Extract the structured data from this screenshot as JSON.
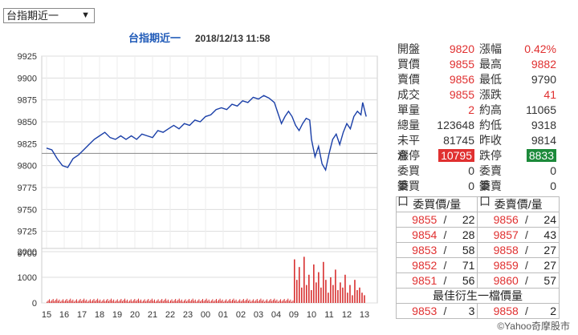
{
  "selector": {
    "value": "台指期近一",
    "arrow": "▼"
  },
  "chart_title": {
    "name": "台指期近一",
    "datetime": "2018/12/13 11:58"
  },
  "chart_data": [
    {
      "type": "line",
      "title": "台指期近一 2018/12/13 11:58",
      "x_tick_labels": [
        "15",
        "16",
        "17",
        "18",
        "19",
        "20",
        "21",
        "22",
        "23",
        "00",
        "01",
        "02",
        "03",
        "04",
        "09",
        "10",
        "11",
        "12",
        "13"
      ],
      "ylim": [
        9700,
        9925
      ],
      "y_ticks": [
        9925,
        9900,
        9875,
        9850,
        9825,
        9800,
        9775,
        9750,
        9725,
        9700
      ],
      "reference_line": 9814,
      "grid": true,
      "series": [
        {
          "points": [
            [
              0.0,
              9820
            ],
            [
              0.3,
              9818
            ],
            [
              0.6,
              9808
            ],
            [
              0.9,
              9800
            ],
            [
              1.2,
              9798
            ],
            [
              1.5,
              9808
            ],
            [
              1.8,
              9812
            ],
            [
              2.1,
              9818
            ],
            [
              2.4,
              9824
            ],
            [
              2.7,
              9830
            ],
            [
              3.0,
              9834
            ],
            [
              3.3,
              9838
            ],
            [
              3.6,
              9832
            ],
            [
              3.9,
              9830
            ],
            [
              4.2,
              9834
            ],
            [
              4.5,
              9830
            ],
            [
              4.8,
              9834
            ],
            [
              5.1,
              9830
            ],
            [
              5.4,
              9836
            ],
            [
              5.7,
              9834
            ],
            [
              6.0,
              9832
            ],
            [
              6.3,
              9840
            ],
            [
              6.6,
              9838
            ],
            [
              6.9,
              9842
            ],
            [
              7.2,
              9846
            ],
            [
              7.5,
              9842
            ],
            [
              7.8,
              9848
            ],
            [
              8.1,
              9846
            ],
            [
              8.4,
              9852
            ],
            [
              8.7,
              9850
            ],
            [
              9.0,
              9856
            ],
            [
              9.3,
              9858
            ],
            [
              9.6,
              9864
            ],
            [
              9.9,
              9866
            ],
            [
              10.2,
              9864
            ],
            [
              10.5,
              9870
            ],
            [
              10.8,
              9868
            ],
            [
              11.1,
              9874
            ],
            [
              11.4,
              9872
            ],
            [
              11.7,
              9878
            ],
            [
              12.0,
              9876
            ],
            [
              12.3,
              9880
            ],
            [
              12.6,
              9877
            ],
            [
              12.9,
              9872
            ],
            [
              13.1,
              9860
            ],
            [
              13.3,
              9848
            ],
            [
              13.5,
              9856
            ],
            [
              13.7,
              9862
            ],
            [
              13.9,
              9856
            ],
            [
              14.1,
              9846
            ],
            [
              14.3,
              9840
            ],
            [
              14.5,
              9848
            ],
            [
              14.7,
              9854
            ],
            [
              14.9,
              9852
            ],
            [
              15.0,
              9830
            ],
            [
              15.2,
              9810
            ],
            [
              15.4,
              9822
            ],
            [
              15.6,
              9802
            ],
            [
              15.8,
              9795
            ],
            [
              16.0,
              9814
            ],
            [
              16.2,
              9830
            ],
            [
              16.4,
              9836
            ],
            [
              16.6,
              9824
            ],
            [
              16.8,
              9838
            ],
            [
              17.0,
              9848
            ],
            [
              17.2,
              9842
            ],
            [
              17.4,
              9856
            ],
            [
              17.6,
              9862
            ],
            [
              17.8,
              9858
            ],
            [
              17.9,
              9872
            ],
            [
              18.0,
              9864
            ],
            [
              18.1,
              9856
            ]
          ]
        }
      ]
    },
    {
      "type": "bar",
      "ylim": [
        0,
        2000
      ],
      "y_ticks": [
        2000,
        1000,
        0
      ],
      "y_tick_labels": [
        "2000",
        "1000",
        "0"
      ],
      "values_night": 120,
      "values_morning": [
        1700,
        900,
        1400,
        600,
        1800,
        700,
        1100,
        500,
        1500,
        800,
        1200,
        600,
        1600,
        900,
        400,
        1000,
        700,
        1300,
        500,
        800,
        600,
        1100,
        400,
        700,
        300,
        900,
        500,
        600,
        400,
        300
      ]
    }
  ],
  "quote": {
    "rows": [
      {
        "l1": "開盤",
        "v1": "9820",
        "c1": "red",
        "l2": "漲幅",
        "v2": "0.42%",
        "c2": "red"
      },
      {
        "l1": "買價",
        "v1": "9855",
        "c1": "red",
        "l2": "最高",
        "v2": "9882",
        "c2": "red"
      },
      {
        "l1": "賣價",
        "v1": "9856",
        "c1": "red",
        "l2": "最低",
        "v2": "9790",
        "c2": "dark"
      },
      {
        "l1": "成交",
        "v1": "9855",
        "c1": "red",
        "l2": "漲跌",
        "v2": "41",
        "c2": "red"
      },
      {
        "l1": "單量",
        "v1": "2",
        "c1": "red",
        "l2": "約高",
        "v2": "11065",
        "c2": "dark"
      },
      {
        "l1": "總量",
        "v1": "123648",
        "c1": "dark",
        "l2": "約低",
        "v2": "9318",
        "c2": "dark"
      },
      {
        "l1": "未平倉",
        "v1": "81745",
        "c1": "dark",
        "l2": "昨收",
        "v2": "9814",
        "c2": "dark"
      },
      {
        "l1": "漲停",
        "v1": "10795",
        "c1": "box-red",
        "l2": "跌停",
        "v2": "8833",
        "c2": "box-green"
      },
      {
        "l1": "委買筆",
        "v1": "0",
        "c1": "dark",
        "l2": "委賣筆",
        "v2": "0",
        "c2": "dark"
      },
      {
        "l1": "委買口",
        "v1": "0",
        "c1": "dark",
        "l2": "委賣口",
        "v2": "0",
        "c2": "dark"
      }
    ],
    "book_headers": [
      "委買價/量",
      "委賣價/量"
    ],
    "book": [
      {
        "bp": "9855",
        "bq": "22",
        "ap": "9856",
        "aq": "24"
      },
      {
        "bp": "9854",
        "bq": "28",
        "ap": "9857",
        "aq": "43"
      },
      {
        "bp": "9853",
        "bq": "58",
        "ap": "9858",
        "aq": "27"
      },
      {
        "bp": "9852",
        "bq": "71",
        "ap": "9859",
        "aq": "27"
      },
      {
        "bp": "9851",
        "bq": "56",
        "ap": "9860",
        "aq": "57"
      }
    ],
    "best_header": "最佳衍生一檔價量",
    "best": {
      "bp": "9853",
      "bq": "3",
      "ap": "9858",
      "aq": "2"
    },
    "slash": "/"
  },
  "footer": {
    "copyright": "©Yahoo奇摩股市"
  },
  "colors": {
    "line": "#1a3fa8",
    "up": "#e03030",
    "down_box": "#1c8a3a",
    "title": "#1f5ab8",
    "volume": "#d83030"
  }
}
